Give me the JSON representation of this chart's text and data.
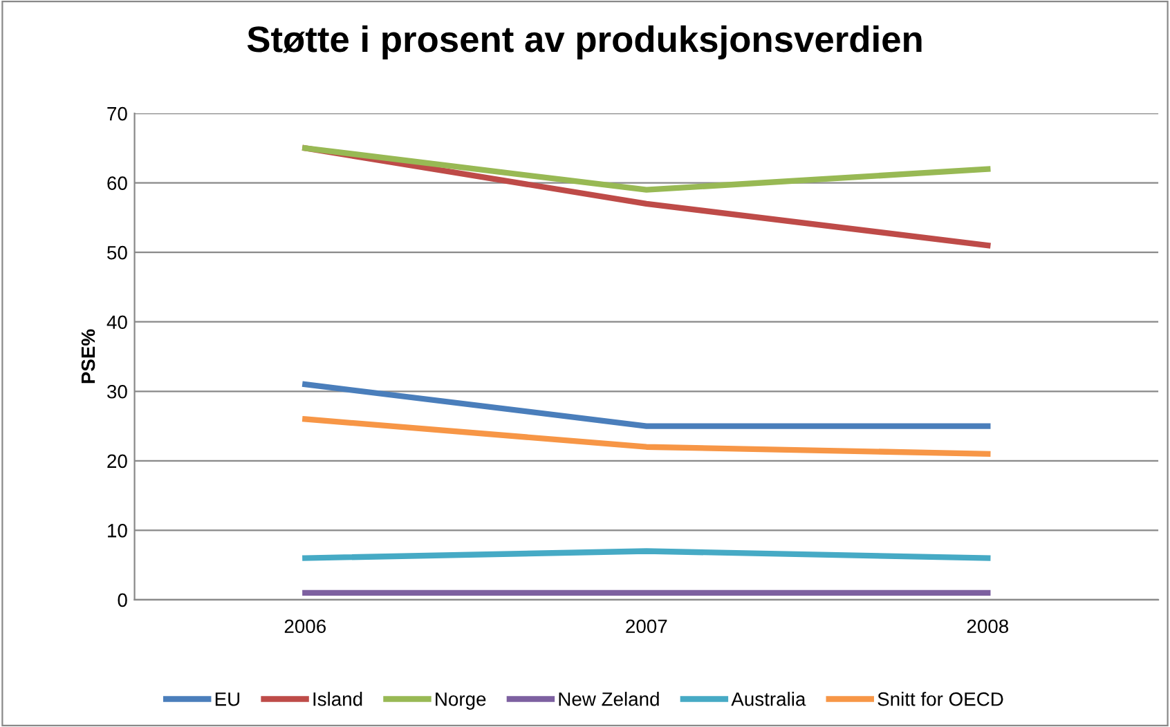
{
  "chart_data": {
    "type": "line",
    "title": "Støtte i prosent av produksjonsverdien",
    "ylabel": "PSE%",
    "categories": [
      "2006",
      "2007",
      "2008"
    ],
    "series": [
      {
        "name": "EU",
        "color": "#4a7ebb",
        "values": [
          31,
          25,
          25
        ]
      },
      {
        "name": "Island",
        "color": "#be4b48",
        "values": [
          65,
          57,
          51
        ]
      },
      {
        "name": "Norge",
        "color": "#98b954",
        "values": [
          65,
          59,
          62
        ]
      },
      {
        "name": "New Zeland",
        "color": "#7d60a0",
        "values": [
          1,
          1,
          1
        ]
      },
      {
        "name": "Australia",
        "color": "#46aac5",
        "values": [
          6,
          7,
          6
        ]
      },
      {
        "name": "Snitt for OECD",
        "color": "#f79646",
        "values": [
          26,
          22,
          21
        ]
      }
    ],
    "ylim": [
      0,
      70
    ],
    "yticks": [
      0,
      10,
      20,
      30,
      40,
      50,
      60,
      70
    ],
    "grid": "y",
    "legend": "bottom",
    "marker": "none",
    "line_style": "solid"
  }
}
